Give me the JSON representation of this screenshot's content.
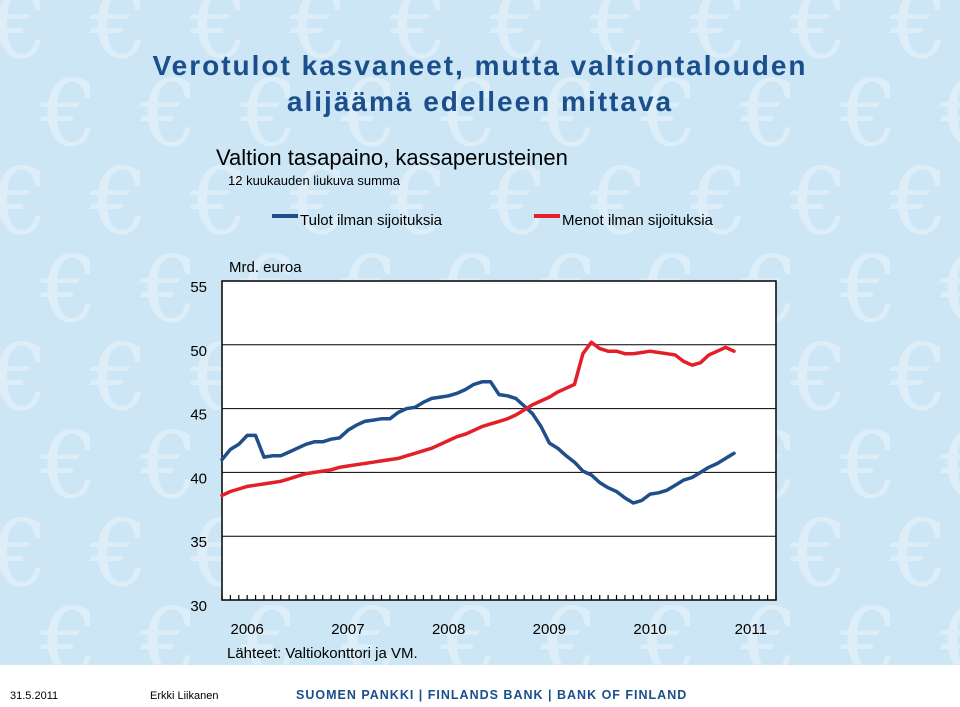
{
  "slide": {
    "title_line1": "Verotulot kasvaneet, mutta valtiontalouden",
    "title_line2": "alijäämä edelleen mittava",
    "source": "Lähteet: Valtiokonttori ja VM.",
    "footer_date": "31.5.2011",
    "footer_author": "Erkki Liikanen",
    "footer_org": "SUOMEN PANKKI | FINLANDS BANK | BANK OF FINLAND",
    "accent_color": "#1a4f8c"
  },
  "chart_data": {
    "type": "line",
    "title": "Valtion tasapaino, kassaperusteinen",
    "subtitle": "12 kuukauden liukuva summa",
    "ylabel": "Mrd. euroa",
    "xlim": [
      2006.0,
      2011.5
    ],
    "ylim": [
      30,
      55
    ],
    "yticks": [
      30,
      35,
      40,
      45,
      50,
      55
    ],
    "xticks": [
      "2006",
      "2007",
      "2008",
      "2009",
      "2010",
      "2011"
    ],
    "grid": true,
    "legend_position": "top",
    "series": [
      {
        "name": "Tulot ilman sijoituksia",
        "color": "#1f4e8a",
        "x": [
          2006.0,
          2006.083,
          2006.167,
          2006.25,
          2006.333,
          2006.417,
          2006.5,
          2006.583,
          2006.667,
          2006.75,
          2006.833,
          2006.917,
          2007.0,
          2007.083,
          2007.167,
          2007.25,
          2007.333,
          2007.417,
          2007.5,
          2007.583,
          2007.667,
          2007.75,
          2007.833,
          2007.917,
          2008.0,
          2008.083,
          2008.167,
          2008.25,
          2008.333,
          2008.417,
          2008.5,
          2008.583,
          2008.667,
          2008.75,
          2008.833,
          2008.917,
          2009.0,
          2009.083,
          2009.167,
          2009.25,
          2009.333,
          2009.417,
          2009.5,
          2009.583,
          2009.667,
          2009.75,
          2009.833,
          2009.917,
          2010.0,
          2010.083,
          2010.167,
          2010.25,
          2010.333,
          2010.417,
          2010.5,
          2010.583,
          2010.667,
          2010.75,
          2010.833,
          2010.917,
          2011.0,
          2011.083
        ],
        "values": [
          41.0,
          41.8,
          42.2,
          42.9,
          42.9,
          41.2,
          41.3,
          41.3,
          41.6,
          41.9,
          42.2,
          42.4,
          42.4,
          42.6,
          42.7,
          43.3,
          43.7,
          44.0,
          44.1,
          44.2,
          44.2,
          44.7,
          45.0,
          45.1,
          45.5,
          45.8,
          45.9,
          46.0,
          46.2,
          46.5,
          46.9,
          47.1,
          47.1,
          46.1,
          46.0,
          45.8,
          45.2,
          44.6,
          43.6,
          42.3,
          41.9,
          41.3,
          40.8,
          40.1,
          39.8,
          39.2,
          38.8,
          38.5,
          38.0,
          37.6,
          37.8,
          38.3,
          38.4,
          38.6,
          39.0,
          39.4,
          39.6,
          40.0,
          40.4,
          40.7,
          41.1,
          41.5
        ]
      },
      {
        "name": "Menot ilman sijoituksia",
        "color": "#e3202a",
        "x": [
          2006.0,
          2006.083,
          2006.167,
          2006.25,
          2006.333,
          2006.417,
          2006.5,
          2006.583,
          2006.667,
          2006.75,
          2006.833,
          2006.917,
          2007.0,
          2007.083,
          2007.167,
          2007.25,
          2007.333,
          2007.417,
          2007.5,
          2007.583,
          2007.667,
          2007.75,
          2007.833,
          2007.917,
          2008.0,
          2008.083,
          2008.167,
          2008.25,
          2008.333,
          2008.417,
          2008.5,
          2008.583,
          2008.667,
          2008.75,
          2008.833,
          2008.917,
          2009.0,
          2009.083,
          2009.167,
          2009.25,
          2009.333,
          2009.417,
          2009.5,
          2009.583,
          2009.667,
          2009.75,
          2009.833,
          2009.917,
          2010.0,
          2010.083,
          2010.167,
          2010.25,
          2010.333,
          2010.417,
          2010.5,
          2010.583,
          2010.667,
          2010.75,
          2010.833,
          2010.917,
          2011.0,
          2011.083
        ],
        "values": [
          38.2,
          38.5,
          38.7,
          38.9,
          39.0,
          39.1,
          39.2,
          39.3,
          39.5,
          39.7,
          39.9,
          40.0,
          40.1,
          40.2,
          40.4,
          40.5,
          40.6,
          40.7,
          40.8,
          40.9,
          41.0,
          41.1,
          41.3,
          41.5,
          41.7,
          41.9,
          42.2,
          42.5,
          42.8,
          43.0,
          43.3,
          43.6,
          43.8,
          44.0,
          44.2,
          44.5,
          44.9,
          45.3,
          45.6,
          45.9,
          46.3,
          46.6,
          46.9,
          49.3,
          50.2,
          49.7,
          49.5,
          49.5,
          49.3,
          49.3,
          49.4,
          49.5,
          49.4,
          49.3,
          49.2,
          48.7,
          48.4,
          48.6,
          49.2,
          49.5,
          49.8,
          49.5
        ]
      }
    ]
  }
}
